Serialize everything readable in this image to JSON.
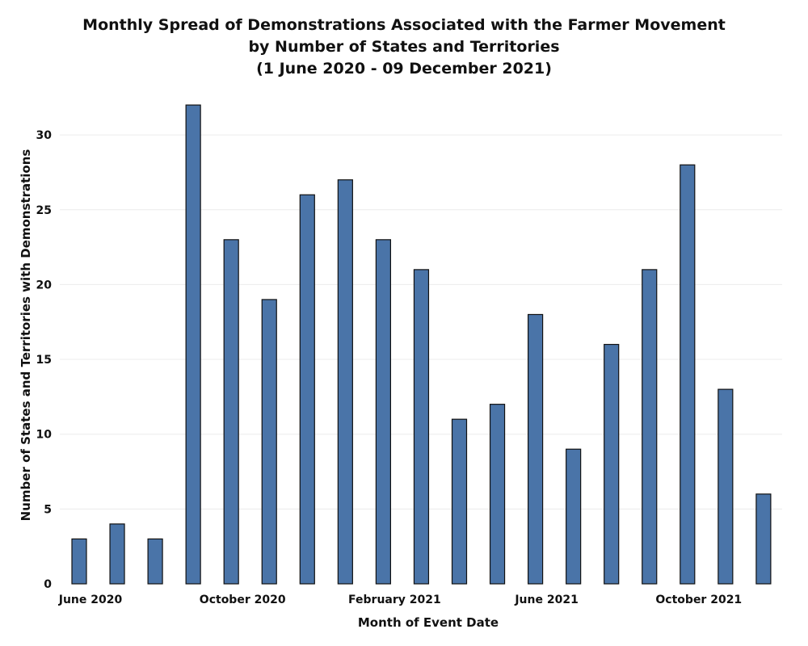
{
  "chart_data": {
    "type": "bar",
    "title": [
      "Monthly Spread of Demonstrations Associated with the Farmer Movement",
      "by Number of States and Territories",
      "(1 June 2020 - 09 December 2021)"
    ],
    "xlabel": "Month of Event Date",
    "ylabel": "Number of States and Territories with Demonstrations",
    "categories": [
      "2020-06",
      "2020-07",
      "2020-08",
      "2020-09",
      "2020-10",
      "2020-11",
      "2020-12",
      "2021-01",
      "2021-02",
      "2021-03",
      "2021-04",
      "2021-05",
      "2021-06",
      "2021-07",
      "2021-08",
      "2021-09",
      "2021-10",
      "2021-11",
      "2021-12"
    ],
    "values": [
      3,
      4,
      3,
      32,
      23,
      19,
      26,
      27,
      23,
      21,
      11,
      12,
      18,
      9,
      16,
      21,
      28,
      13,
      6
    ],
    "x_tick_labels": [
      {
        "index": 0,
        "label": "June 2020"
      },
      {
        "index": 4,
        "label": "October 2020"
      },
      {
        "index": 8,
        "label": "February 2021"
      },
      {
        "index": 12,
        "label": "June 2021"
      },
      {
        "index": 16,
        "label": "October 2021"
      }
    ],
    "y_ticks": [
      0,
      5,
      10,
      15,
      20,
      25,
      30
    ],
    "ylim": [
      0,
      34
    ],
    "bar_color": "#4a74a8",
    "grid": true
  }
}
